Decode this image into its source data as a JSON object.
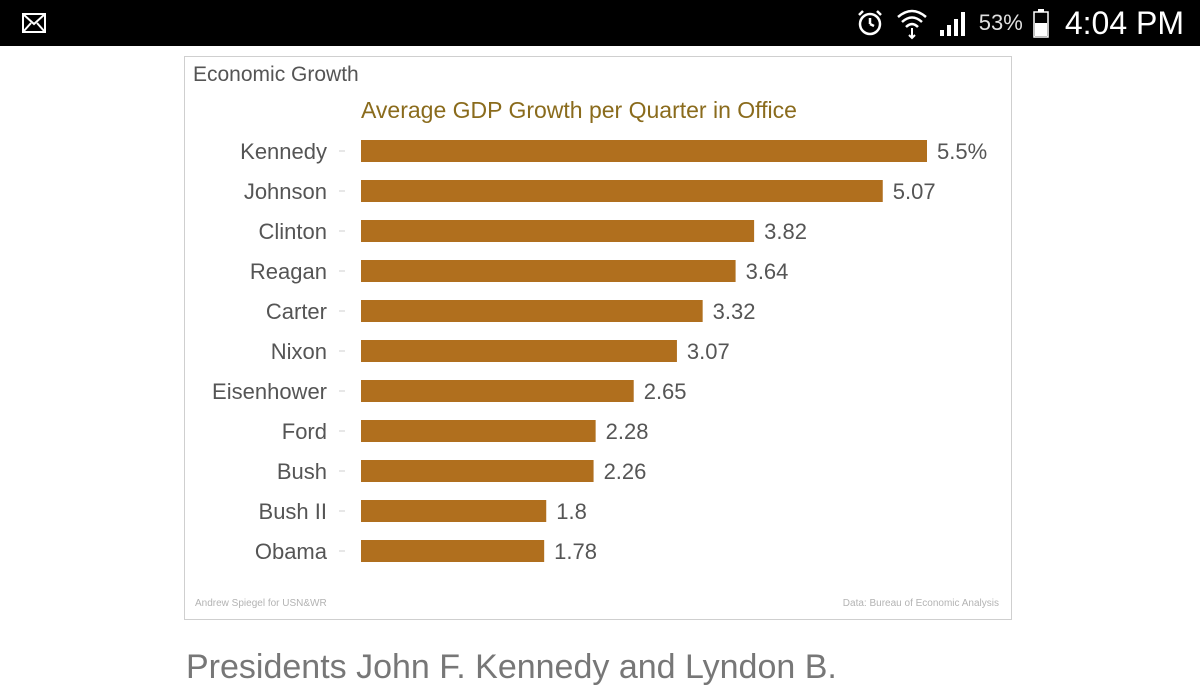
{
  "status_bar": {
    "battery_percent": "53%",
    "time": "4:04 PM"
  },
  "card": {
    "heading": "Economic Growth",
    "footer_left": "Andrew Spiegel for USN&WR",
    "footer_right": "Data: Bureau of Economic Analysis"
  },
  "chart_data": {
    "type": "bar",
    "orientation": "horizontal",
    "title": "Average GDP Growth per Quarter in Office",
    "categories": [
      "Kennedy",
      "Johnson",
      "Clinton",
      "Reagan",
      "Carter",
      "Nixon",
      "Eisenhower",
      "Ford",
      "Bush",
      "Bush II",
      "Obama"
    ],
    "values": [
      5.5,
      5.07,
      3.82,
      3.64,
      3.32,
      3.07,
      2.65,
      2.28,
      2.26,
      1.8,
      1.78
    ],
    "value_labels": [
      "5.5%",
      "5.07",
      "3.82",
      "3.64",
      "3.32",
      "3.07",
      "2.65",
      "2.28",
      "2.26",
      "1.8",
      "1.78"
    ],
    "xlim": [
      0,
      5.5
    ],
    "bar_color": "#b06f1e",
    "xlabel": "",
    "ylabel": ""
  },
  "caption": "Presidents John F. Kennedy and Lyndon B."
}
